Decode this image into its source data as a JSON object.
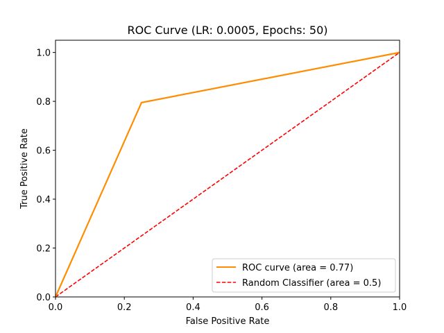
{
  "chart_data": {
    "type": "line",
    "title": "ROC Curve (LR: 0.0005, Epochs: 50)",
    "xlabel": "False Positive Rate",
    "ylabel": "True Positive Rate",
    "xlim": [
      0.0,
      1.0
    ],
    "ylim": [
      0.0,
      1.05
    ],
    "x_ticks": [
      0.0,
      0.2,
      0.4,
      0.6,
      0.8,
      1.0
    ],
    "x_tick_labels": [
      "0.0",
      "0.2",
      "0.4",
      "0.6",
      "0.8",
      "1.0"
    ],
    "y_ticks": [
      0.0,
      0.2,
      0.4,
      0.6,
      0.8,
      1.0
    ],
    "y_tick_labels": [
      "0.0",
      "0.2",
      "0.4",
      "0.6",
      "0.8",
      "1.0"
    ],
    "grid": false,
    "legend_position": "lower-right",
    "series": [
      {
        "name": "ROC curve (area = 0.77)",
        "color": "#ff8c00",
        "style": "solid",
        "x": [
          0.0,
          0.25,
          1.0
        ],
        "y": [
          0.0,
          0.795,
          1.0
        ]
      },
      {
        "name": "Random Classifier (area = 0.5)",
        "color": "#ff0000",
        "style": "dashed",
        "x": [
          0.0,
          1.0
        ],
        "y": [
          0.0,
          1.0
        ]
      }
    ]
  }
}
